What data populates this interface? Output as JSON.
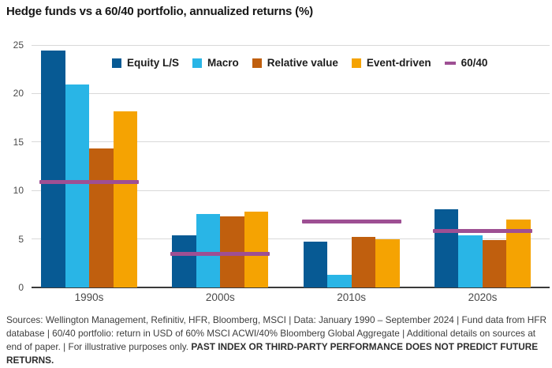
{
  "title": "Hedge funds vs a 60/40 portfolio, annualized returns (%)",
  "chart_data": {
    "type": "bar",
    "title": "Hedge funds vs a 60/40 portfolio, annualized returns (%)",
    "categories": [
      "1990s",
      "2000s",
      "2010s",
      "2020s"
    ],
    "series": [
      {
        "name": "Equity L/S",
        "color": "#075a94",
        "values": [
          24.4,
          5.4,
          4.7,
          8.1
        ]
      },
      {
        "name": "Macro",
        "color": "#29b5e6",
        "values": [
          20.9,
          7.6,
          1.3,
          5.4
        ]
      },
      {
        "name": "Relative value",
        "color": "#c05f0e",
        "values": [
          14.3,
          7.3,
          5.2,
          4.9
        ]
      },
      {
        "name": "Event-driven",
        "color": "#f5a302",
        "values": [
          18.2,
          7.8,
          5.0,
          7.0
        ]
      }
    ],
    "line_series": {
      "name": "60/40",
      "color": "#9e4f93",
      "values": [
        10.9,
        3.5,
        6.8,
        5.8
      ]
    },
    "ylabel": "",
    "xlabel": "",
    "ylim": [
      0,
      25
    ],
    "yticks": [
      0,
      5,
      10,
      15,
      20,
      25
    ],
    "grid": "horizontal",
    "legend_position": "top-inside"
  },
  "footer": {
    "text": "Sources: Wellington Management, Refinitiv, HFR, Bloomberg, MSCI  |  Data: January 1990 – September 2024  |  Fund data from HFR database  |  60/40 portfolio: return in USD of 60% MSCI ACWI/40% Bloomberg Global Aggregate  |  Additional details on sources at end of paper.  |  For illustrative purposes only. ",
    "bold_text": "PAST INDEX OR THIRD-PARTY PERFORMANCE DOES NOT PREDICT FUTURE RETURNS."
  }
}
